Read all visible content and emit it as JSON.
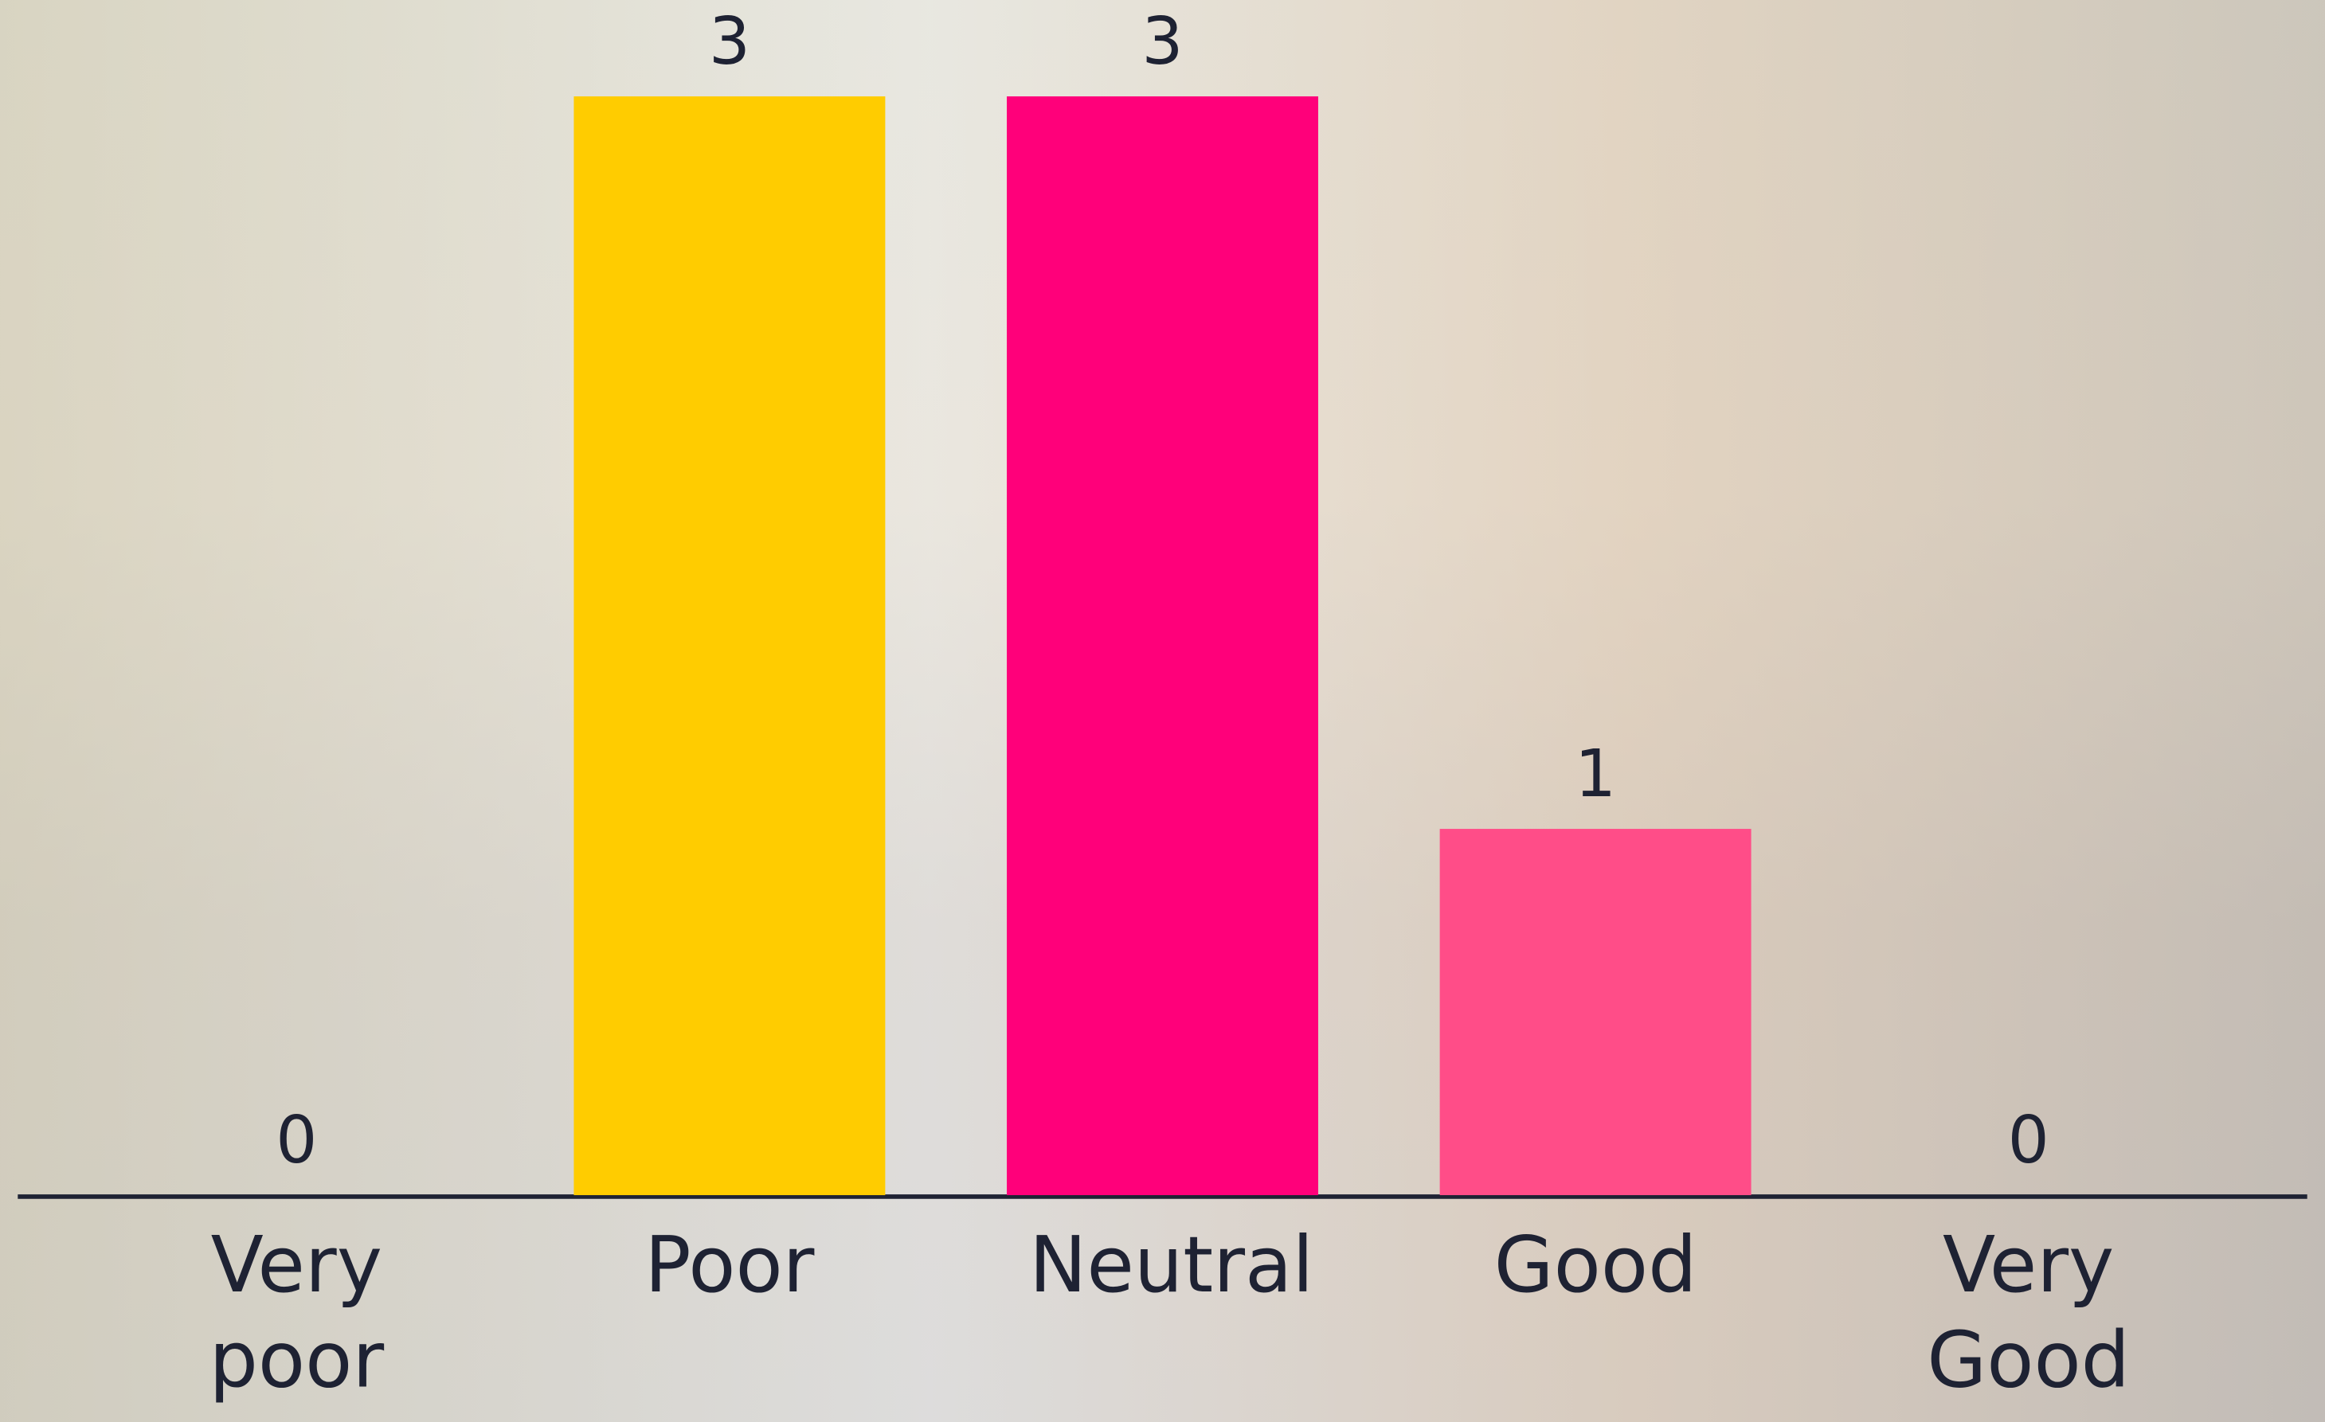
{
  "chart_data": {
    "type": "bar",
    "categories": [
      "Very poor",
      "Poor",
      "Neutral",
      "Good",
      "Very Good"
    ],
    "values": [
      0,
      3,
      3,
      1,
      0
    ],
    "colors": [
      null,
      "#ffcc00",
      "#ff007a",
      "#ff4d88",
      null
    ],
    "ylim": [
      0,
      3
    ]
  }
}
